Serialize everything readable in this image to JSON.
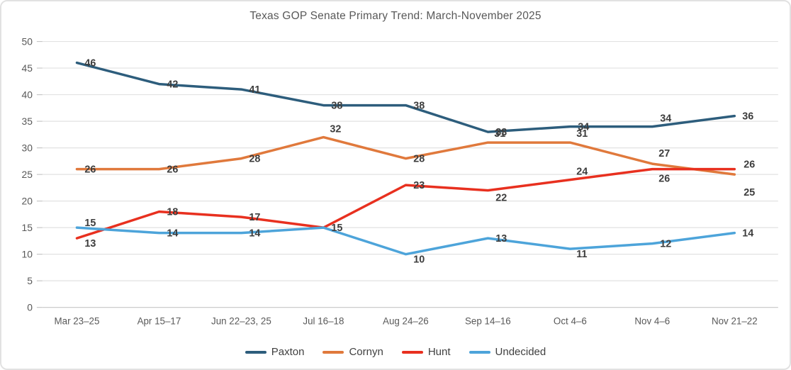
{
  "chart_data": {
    "type": "line",
    "title": "Texas GOP Senate Primary Trend: March-November 2025",
    "categories": [
      "Mar 23–25",
      "Apr 15–17",
      "Jun 22–23, 25",
      "Jul 16–18",
      "Aug 24–26",
      "Sep 14–16",
      "Oct 4–6",
      "Nov 4–6",
      "Nov 21–22"
    ],
    "series": [
      {
        "name": "Paxton",
        "color": "#2d5d7c",
        "values": [
          46,
          42,
          41,
          38,
          38,
          33,
          34,
          34,
          36
        ]
      },
      {
        "name": "Cornyn",
        "color": "#e0793c",
        "values": [
          26,
          26,
          28,
          32,
          28,
          31,
          31,
          27,
          25
        ]
      },
      {
        "name": "Hunt",
        "color": "#e8301f",
        "values": [
          13,
          18,
          17,
          15,
          23,
          22,
          24,
          26,
          26
        ]
      },
      {
        "name": "Undecided",
        "color": "#4da4da",
        "values": [
          15,
          14,
          14,
          15,
          10,
          13,
          11,
          12,
          14
        ]
      }
    ],
    "ylim": [
      0,
      50
    ],
    "ytick_step": 5,
    "grid": "horizontal",
    "legend_position": "bottom",
    "data_labels": true,
    "colors": {
      "axis_text": "#595959",
      "data_label_text": "#3d3d3d",
      "gridline": "#e2e2e2",
      "axis_line": "#c6c6c6"
    }
  }
}
